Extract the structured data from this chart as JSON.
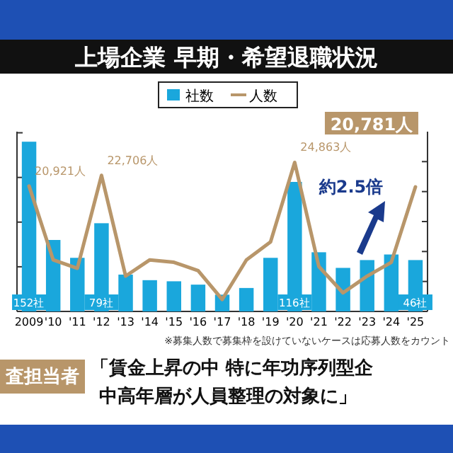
{
  "chart_data": {
    "type": "bar",
    "title": "上場企業 早期・希望退職状況",
    "categories": [
      "2009",
      "'10",
      "'11",
      "'12",
      "'13",
      "'14",
      "'15",
      "'16",
      "'17",
      "'18",
      "'19",
      "'20",
      "'21",
      "'22",
      "'23",
      "'24",
      "'25"
    ],
    "series": [
      {
        "name": "社数",
        "color": "#1aa7dc",
        "values": [
          152,
          64,
          48,
          79,
          33,
          28,
          27,
          24,
          15,
          21,
          48,
          116,
          53,
          39,
          46,
          51,
          46
        ],
        "value_labels": [
          "152社",
          null,
          null,
          "79社",
          null,
          null,
          null,
          null,
          null,
          null,
          null,
          "116社",
          null,
          null,
          null,
          null,
          "46社"
        ]
      },
      {
        "name": "人数",
        "type": "line",
        "axis": "y2",
        "color": "#b8966a",
        "values": [
          20921,
          8600,
          7200,
          22706,
          5900,
          8600,
          8200,
          6800,
          2000,
          8600,
          11600,
          24863,
          7500,
          3100,
          5900,
          8200,
          20781
        ],
        "value_labels": [
          "20,921人",
          null,
          null,
          "22,706人",
          null,
          null,
          null,
          null,
          null,
          null,
          null,
          "24,863人",
          null,
          null,
          null,
          null,
          "20,781人"
        ]
      }
    ],
    "ylim": [
      0,
      161
    ],
    "yticks": [
      {
        "value": 0,
        "label": null
      },
      {
        "value": 40,
        "label": null
      },
      {
        "value": 80,
        "label": null
      },
      {
        "value": 120,
        "label": null
      },
      {
        "value": 160,
        "label": null
      }
    ],
    "y2lim": [
      0,
      30000
    ],
    "y2ticks": [
      {
        "value": 0,
        "label": null
      },
      {
        "value": 5000,
        "label": null
      },
      {
        "value": 10000,
        "label": null
      },
      {
        "value": 15000,
        "label": null
      },
      {
        "value": 20000,
        "label": null
      },
      {
        "value": 25000,
        "label": null
      }
    ],
    "tick_labels": "x",
    "legend": "top",
    "annotations": [
      "約2.5倍",
      "※募集人数で募集枠を設けていないケースは応募人数をカウント",
      "査担当者",
      "「賃金上昇の中 特に年功序列型企",
      "中高年層が人員整理の対象に」"
    ]
  }
}
